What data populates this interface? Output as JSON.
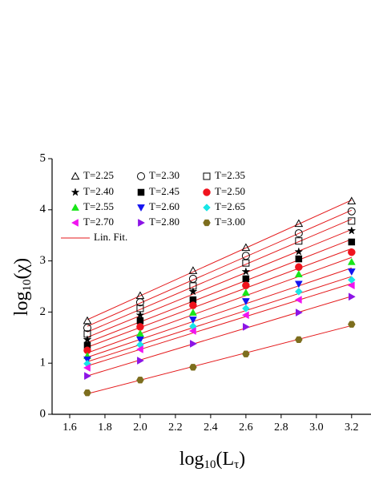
{
  "chart_data": {
    "type": "scatter",
    "x_label": {
      "base": "log",
      "sub": "10",
      "open": "(L",
      "sub2": "τ",
      "close": ")"
    },
    "y_label": {
      "base": "log",
      "sub": "10",
      "arg": "(χ)"
    },
    "x": [
      1.7,
      2.0,
      2.3,
      2.6,
      2.9,
      3.2
    ],
    "xlim": [
      1.5,
      3.31
    ],
    "xticks": [
      1.6,
      1.8,
      2.0,
      2.2,
      2.4,
      2.6,
      2.8,
      3.0,
      3.2
    ],
    "xtick_labels": [
      "1.6",
      "1.8",
      "2.0",
      "2.2",
      "2.4",
      "2.6",
      "2.8",
      "3.0",
      "3.2"
    ],
    "ylim": [
      0,
      5
    ],
    "yticks": [
      0,
      1,
      2,
      3,
      4,
      5
    ],
    "fit_label": "Lin. Fit.",
    "fit_color": "#e41a1c",
    "series": [
      {
        "name": "T=2.25",
        "marker": "triangle-open",
        "color": "#000000",
        "values": [
          1.83,
          2.32,
          2.81,
          3.26,
          3.73,
          4.17
        ]
      },
      {
        "name": "T=2.30",
        "marker": "circle-open",
        "color": "#000000",
        "values": [
          1.69,
          2.19,
          2.65,
          3.1,
          3.54,
          3.97
        ]
      },
      {
        "name": "T=2.35",
        "marker": "square-open",
        "color": "#000000",
        "values": [
          1.57,
          2.07,
          2.51,
          2.96,
          3.39,
          3.78
        ]
      },
      {
        "name": "T=2.40",
        "marker": "star",
        "color": "#000000",
        "values": [
          1.46,
          1.94,
          2.4,
          2.79,
          3.18,
          3.59
        ]
      },
      {
        "name": "T=2.45",
        "marker": "square",
        "color": "#000000",
        "values": [
          1.35,
          1.83,
          2.24,
          2.65,
          3.04,
          3.37
        ]
      },
      {
        "name": "T=2.50",
        "marker": "circle",
        "color": "#f0141e",
        "values": [
          1.25,
          1.71,
          2.13,
          2.52,
          2.88,
          3.17
        ]
      },
      {
        "name": "T=2.55",
        "marker": "triangle",
        "color": "#19e619",
        "values": [
          1.14,
          1.58,
          1.99,
          2.38,
          2.74,
          2.98
        ]
      },
      {
        "name": "T=2.60",
        "marker": "triangle-down",
        "color": "#1414f0",
        "values": [
          1.07,
          1.46,
          1.85,
          2.21,
          2.55,
          2.79
        ]
      },
      {
        "name": "T=2.65",
        "marker": "diamond",
        "color": "#19e6e6",
        "values": [
          0.99,
          1.36,
          1.72,
          2.07,
          2.4,
          2.63
        ]
      },
      {
        "name": "T=2.70",
        "marker": "triangle-left",
        "color": "#f014f0",
        "values": [
          0.91,
          1.27,
          1.63,
          1.94,
          2.24,
          2.52
        ]
      },
      {
        "name": "T=2.80",
        "marker": "triangle-right",
        "color": "#8c14e6",
        "values": [
          0.75,
          1.05,
          1.38,
          1.71,
          1.99,
          2.3
        ]
      },
      {
        "name": "T=3.00",
        "marker": "hexagon",
        "color": "#7d6e1e",
        "values": [
          0.42,
          0.67,
          0.92,
          1.18,
          1.46,
          1.76
        ]
      }
    ]
  }
}
